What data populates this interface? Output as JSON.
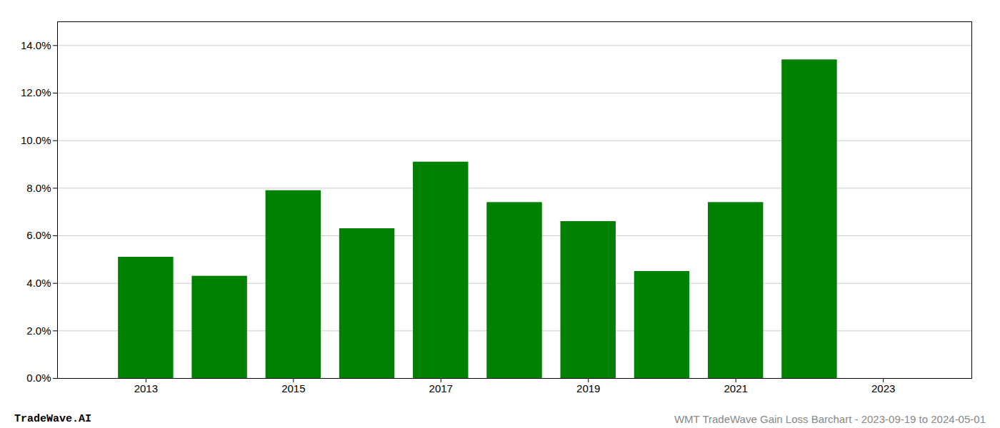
{
  "chart_data": {
    "type": "bar",
    "x": [
      2013,
      2014,
      2015,
      2016,
      2017,
      2018,
      2019,
      2020,
      2021,
      2022
    ],
    "values": [
      0.051,
      0.043,
      0.079,
      0.063,
      0.091,
      0.074,
      0.066,
      0.045,
      0.074,
      0.134
    ],
    "color": "#008000",
    "xlim": [
      2011.8,
      2024.2
    ],
    "xticks": [
      2013,
      2015,
      2017,
      2019,
      2021,
      2023
    ],
    "ylim": [
      0,
      0.15
    ],
    "yticks": [
      {
        "value": 0.0,
        "label": "0.0%"
      },
      {
        "value": 0.02,
        "label": "2.0%"
      },
      {
        "value": 0.04,
        "label": "4.0%"
      },
      {
        "value": 0.06,
        "label": "6.0%"
      },
      {
        "value": 0.08,
        "label": "8.0%"
      },
      {
        "value": 0.1,
        "label": "10.0%"
      },
      {
        "value": 0.12,
        "label": "12.0%"
      },
      {
        "value": 0.14,
        "label": "14.0%"
      }
    ],
    "grid": true,
    "annotations": [
      "TradeWave.AI",
      "WMT TradeWave Gain Loss Barchart - 2023-09-19 to 2024-05-01"
    ]
  }
}
